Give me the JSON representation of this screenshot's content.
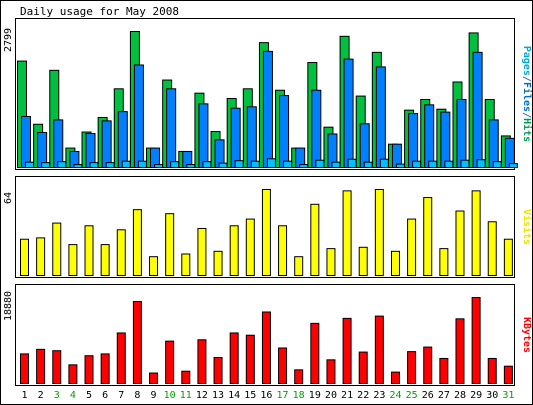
{
  "chart_data": {
    "type": "bar",
    "title": "Daily usage for May 2008",
    "categories": [
      "1",
      "2",
      "3",
      "4",
      "5",
      "6",
      "7",
      "8",
      "9",
      "10",
      "11",
      "12",
      "13",
      "14",
      "15",
      "16",
      "17",
      "18",
      "19",
      "20",
      "21",
      "22",
      "23",
      "24",
      "25",
      "26",
      "27",
      "28",
      "29",
      "30",
      "31"
    ],
    "weekend_days": [
      "3",
      "4",
      "10",
      "11",
      "17",
      "18",
      "24",
      "25",
      "31"
    ],
    "panels": [
      {
        "id": "hits",
        "ymax": 2799,
        "ymax_label": "2799",
        "legend": [
          {
            "text": "Pages",
            "color": "#00a6d6"
          },
          {
            "text": "/",
            "color": "#3f6fbf"
          },
          {
            "text": "Files",
            "color": "#0070c0"
          },
          {
            "text": "/",
            "color": "#3f6fbf"
          },
          {
            "text": "Hits",
            "color": "#00a050"
          }
        ],
        "series": [
          {
            "name": "Hits",
            "color": "#00c040",
            "values": [
              2190,
              890,
              2000,
              400,
              730,
              1030,
              1620,
              2799,
              400,
              1800,
              330,
              1530,
              740,
              1420,
              1620,
              2570,
              1590,
              400,
              2160,
              830,
              2700,
              1470,
              2370,
              480,
              1180,
              1400,
              1200,
              1760,
              2770,
              1400,
              650
            ]
          },
          {
            "name": "Files",
            "color": "#0080ff",
            "values": [
              1050,
              720,
              980,
              330,
              700,
              960,
              1150,
              2110,
              400,
              1620,
              330,
              1310,
              570,
              1220,
              1250,
              2390,
              1480,
              400,
              1590,
              690,
              2230,
              900,
              2070,
              480,
              1110,
              1290,
              1140,
              1400,
              2370,
              980,
              600
            ]
          },
          {
            "name": "Pages",
            "color": "#00c0ff",
            "values": [
              110,
              100,
              120,
              60,
              100,
              100,
              130,
              130,
              60,
              120,
              60,
              120,
              90,
              140,
              130,
              180,
              130,
              60,
              150,
              110,
              170,
              110,
              170,
              70,
              130,
              130,
              130,
              150,
              160,
              120,
              80
            ]
          }
        ]
      },
      {
        "id": "visits",
        "ymax": 64,
        "ymax_label": "64",
        "legend": [
          {
            "text": "Visits",
            "color": "#f0e000"
          }
        ],
        "series": [
          {
            "name": "Visits",
            "color": "#ffff00",
            "values": [
              27,
              28,
              39,
              23,
              37,
              23,
              34,
              49,
              14,
              46,
              16,
              35,
              18,
              37,
              42,
              64,
              37,
              14,
              53,
              20,
              63,
              21,
              64,
              18,
              42,
              58,
              20,
              48,
              63,
              40,
              27
            ]
          }
        ]
      },
      {
        "id": "kbytes",
        "ymax": 18880,
        "ymax_label": "18880",
        "legend": [
          {
            "text": "KBytes",
            "color": "#ff0000"
          }
        ],
        "series": [
          {
            "name": "KBytes",
            "color": "#ff0000",
            "values": [
              6500,
              7500,
              7200,
              4100,
              6100,
              6500,
              11100,
              18000,
              2300,
              9300,
              2700,
              9600,
              5700,
              11100,
              10600,
              15700,
              7800,
              3000,
              13200,
              5200,
              14300,
              6900,
              14800,
              2500,
              7000,
              8000,
              5500,
              14200,
              18880,
              5500,
              3800
            ]
          }
        ]
      }
    ]
  }
}
